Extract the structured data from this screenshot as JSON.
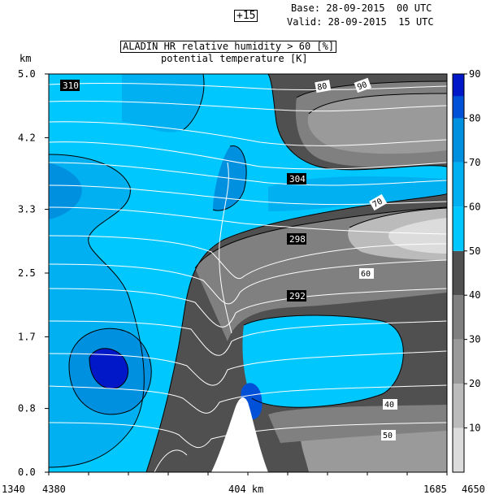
{
  "header": {
    "forecast_step": "+15",
    "base_line": "Base: 28-09-2015  00 UTC",
    "valid_line": "Valid: 28-09-2015  15 UTC",
    "title": "ALADIN HR relative humidity > 60 [%]",
    "subtitle": "potential temperature [K]"
  },
  "axis": {
    "y_unit": "km",
    "x_label_left": "1340",
    "x_label_left2": "4380",
    "x_label_center": "404 km",
    "x_label_right": "1685",
    "x_label_right2": "4650"
  },
  "colors": {
    "rh_60": "#00c8ff",
    "rh_70": "#00b0f0",
    "rh_80": "#0090e0",
    "rh_90": "#0050d8",
    "rh_100": "#0018c8",
    "dry_50": "#505050",
    "dry_40": "#808080",
    "dry_30": "#9a9a9a",
    "dry_20": "#bbbbbb",
    "dry_10": "#dcdcdc",
    "theta_line": "#ffffff",
    "rh_line": "#000000"
  },
  "chart_data": {
    "type": "heatmap",
    "title": "ALADIN HR relative humidity > 60 [%]",
    "subtitle": "potential temperature [K]",
    "ylabel": "km",
    "xlabel": "404 km",
    "ylim": [
      0.0,
      5.0
    ],
    "y_ticks": [
      "0.0",
      "0.8",
      "1.7",
      "2.5",
      "3.3",
      "4.2",
      "5.0"
    ],
    "colorbar": {
      "ticks": [
        "10",
        "20",
        "30",
        "40",
        "50",
        "60",
        "70",
        "80",
        "90"
      ],
      "levels": [
        {
          "value": 0,
          "color_key": "dry_10"
        },
        {
          "value": 10,
          "color_key": "dry_10"
        },
        {
          "value": 20,
          "color_key": "dry_20"
        },
        {
          "value": 30,
          "color_key": "dry_30"
        },
        {
          "value": 40,
          "color_key": "dry_40"
        },
        {
          "value": 50,
          "color_key": "dry_50"
        },
        {
          "value": 60,
          "color_key": "rh_60"
        },
        {
          "value": 70,
          "color_key": "rh_70"
        },
        {
          "value": 80,
          "color_key": "rh_80"
        },
        {
          "value": 90,
          "color_key": "rh_90"
        }
      ]
    },
    "theta_labels": [
      "310",
      "304",
      "298",
      "292"
    ],
    "rh_labels": [
      "40",
      "90",
      "80",
      "70",
      "60",
      "50"
    ]
  }
}
